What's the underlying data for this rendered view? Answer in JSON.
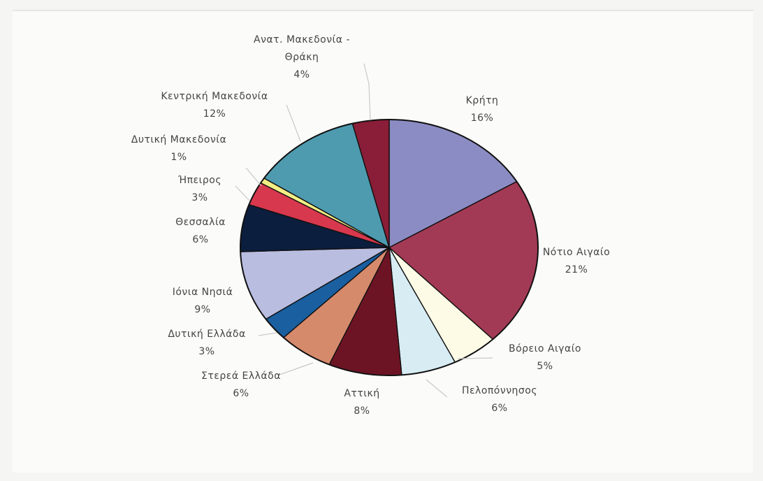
{
  "chart_data": {
    "type": "pie",
    "title": "",
    "slices": [
      {
        "label": [
          "Κρήτη"
        ],
        "pct_label": "16%",
        "value": 16.5,
        "color": "#8c8cc4"
      },
      {
        "label": [
          "Νότιο Αιγαίο"
        ],
        "pct_label": "21%",
        "value": 21.5,
        "color": "#a33a55"
      },
      {
        "label": [
          "Βόρειο Αιγαίο"
        ],
        "pct_label": "5%",
        "value": 5,
        "color": "#fdfbe6"
      },
      {
        "label": [
          "Πελοπόννησος"
        ],
        "pct_label": "6%",
        "value": 6,
        "color": "#d8ecf4"
      },
      {
        "label": [
          "Αττική"
        ],
        "pct_label": "8%",
        "value": 8,
        "color": "#6d1424"
      },
      {
        "label": [
          "Στερεά Ελλάδα"
        ],
        "pct_label": "6%",
        "value": 6,
        "color": "#d68a6c"
      },
      {
        "label": [
          "Δυτική Ελλάδα"
        ],
        "pct_label": "3%",
        "value": 3,
        "color": "#1a5fa0"
      },
      {
        "label": [
          "Ιόνια Νησιά"
        ],
        "pct_label": "9%",
        "value": 9,
        "color": "#b9bde0"
      },
      {
        "label": [
          "Θεσσαλία"
        ],
        "pct_label": "6%",
        "value": 6,
        "color": "#0b1e3e"
      },
      {
        "label": [
          "Ήπειρος"
        ],
        "pct_label": "3%",
        "value": 3,
        "color": "#d8384e"
      },
      {
        "label": [
          "Δυτική Μακεδονία"
        ],
        "pct_label": "1%",
        "value": 0.7,
        "color": "#f3ee84"
      },
      {
        "label": [
          "Κεντρική Μακεδονία"
        ],
        "pct_label": "12%",
        "value": 12,
        "color": "#4e9bb0"
      },
      {
        "label": [
          "Ανατ. Μακεδονία -",
          "Θράκη"
        ],
        "pct_label": "4%",
        "value": 4,
        "color": "#8a1d37"
      }
    ]
  }
}
